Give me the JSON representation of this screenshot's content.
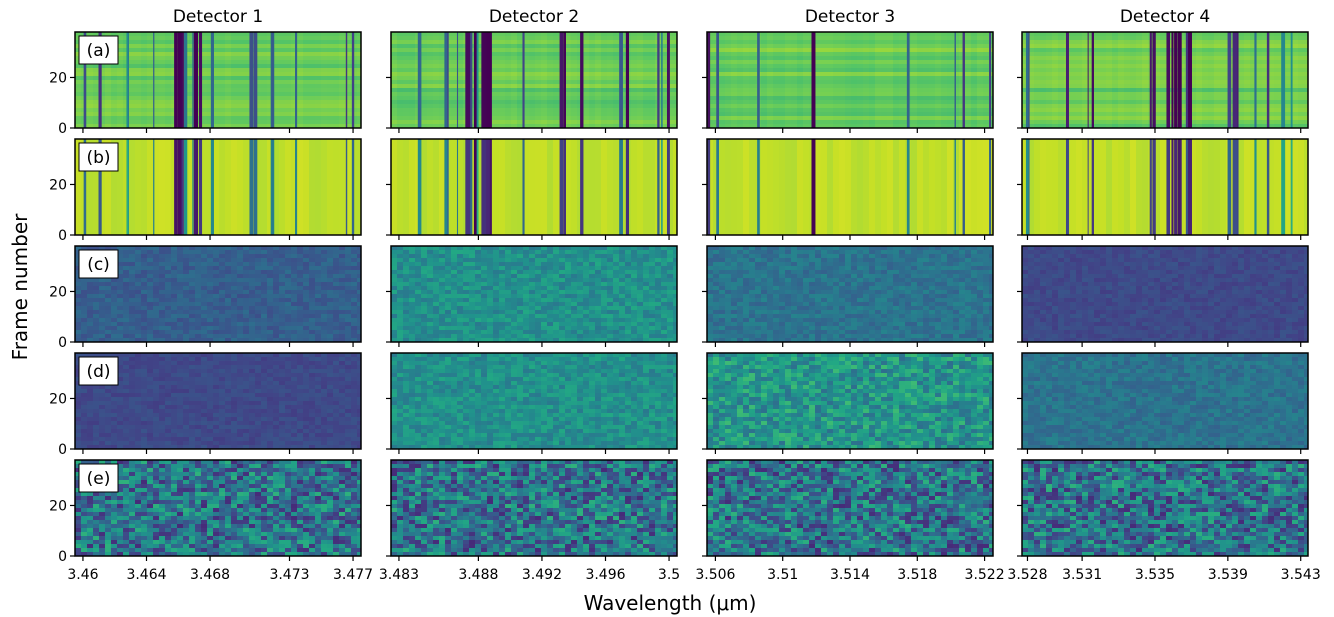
{
  "figure": {
    "ylabel": "Frame number",
    "xlabel": "Wavelength (μm)"
  },
  "chart_data": {
    "type": "heatmap",
    "ylabel": "Frame number",
    "xlabel": "Wavelength (μm)",
    "colormap": "viridis",
    "columns": [
      {
        "title": "Detector 1",
        "xlim": [
          3.4595,
          3.4775
        ],
        "xticks": [
          3.46,
          3.464,
          3.468,
          3.473,
          3.477
        ],
        "xtick_labels": [
          "3.46",
          "3.464",
          "3.468",
          "3.473",
          "3.477"
        ]
      },
      {
        "title": "Detector 2",
        "xlim": [
          3.4825,
          3.5005
        ],
        "xticks": [
          3.483,
          3.488,
          3.492,
          3.496,
          3.5
        ],
        "xtick_labels": [
          "3.483",
          "3.488",
          "3.492",
          "3.496",
          "3.5"
        ]
      },
      {
        "title": "Detector 3",
        "xlim": [
          3.5055,
          3.5225
        ],
        "xticks": [
          3.506,
          3.51,
          3.514,
          3.518,
          3.522
        ],
        "xtick_labels": [
          "3.506",
          "3.51",
          "3.514",
          "3.518",
          "3.522"
        ]
      },
      {
        "title": "Detector 4",
        "xlim": [
          3.5277,
          3.5434
        ],
        "xticks": [
          3.528,
          3.531,
          3.535,
          3.539,
          3.543
        ],
        "xtick_labels": [
          "3.528",
          "3.531",
          "3.535",
          "3.539",
          "3.543"
        ]
      }
    ],
    "rows": [
      {
        "label": "(a)"
      },
      {
        "label": "(b)"
      },
      {
        "label": "(c)"
      },
      {
        "label": "(d)"
      },
      {
        "label": "(e)"
      }
    ],
    "ylim": [
      0,
      38
    ],
    "yticks": [
      0,
      20
    ],
    "ytick_labels": [
      "0",
      "20"
    ],
    "panel_style": [
      [
        "lines-banded",
        "lines-banded",
        "lines-banded",
        "lines-banded"
      ],
      [
        "lines",
        "lines",
        "lines",
        "lines"
      ],
      [
        "noise-dark-teal",
        "noise-green",
        "noise-teal",
        "noise-navy"
      ],
      [
        "noise-navy",
        "noise-green",
        "noise-green-light",
        "noise-teal"
      ],
      [
        "noise-high-contrast",
        "noise-high-contrast",
        "noise-high-contrast",
        "noise-high-contrast"
      ]
    ]
  }
}
